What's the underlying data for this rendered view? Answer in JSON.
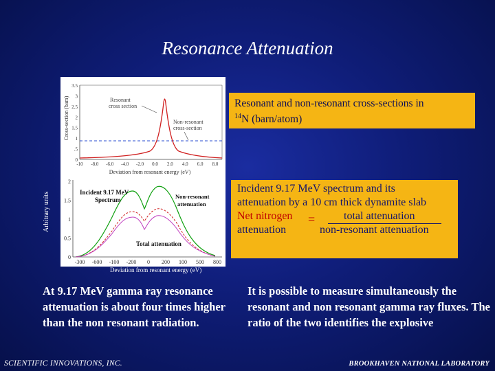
{
  "slide": {
    "title": "Resonance Attenuation",
    "footer_left": "SCIENTIFIC INNOVATIONS, INC.",
    "footer_right": "BROOKHAVEN NATIONAL LABORATORY"
  },
  "top_plot": {
    "y_axis_label": "Cross-section (bam)",
    "x_axis_label": "Deviation from resonant energy (eV)",
    "annotation_resonant": [
      "Resonant",
      "cross section"
    ],
    "annotation_nonresonant": [
      "Non-resonant",
      "cross-section"
    ],
    "y_ticks": [
      "3.5",
      "3",
      "2.5",
      "2",
      "1.5",
      "1",
      ".5",
      "0"
    ],
    "x_ticks": [
      "-10",
      "-8.0",
      "-6.0",
      "-4.0",
      "-2.0",
      "0.0",
      "2.0",
      "4.0",
      "6.0",
      "8.0"
    ]
  },
  "bottom_plot": {
    "y_axis_label": "Arbitrary units",
    "x_axis_label": "Deviation from resonant energy (eV)",
    "label_incident": [
      "Incident 9.17 MeV",
      "Spectrum"
    ],
    "label_nonresonant": [
      "Non-resonant",
      "attenuation"
    ],
    "label_total": "Total attenuation",
    "y_ticks": [
      "2",
      "1.5",
      "1",
      "0.5",
      "0"
    ],
    "x_ticks": [
      "-300",
      "-600",
      "-100",
      "-200",
      "0",
      "200",
      "100",
      "500",
      "800"
    ]
  },
  "box_top": {
    "line1": "Resonant and non-resonant cross-sections in",
    "isotope_mass": "14",
    "line2_rest": "N  (barn/atom)"
  },
  "box_right": {
    "line1": "Incident 9.17 MeV spectrum and its",
    "line2": "attenuation by a 10 cm thick dynamite slab",
    "lhs1": "Net nitrogen",
    "eq": "=",
    "numerator": "total attenuation",
    "lhs2": "attenuation",
    "denominator": "non-resonant attenuation"
  },
  "text_left": "At 9.17 MeV gamma ray resonance attenuation is about four times higher than the non resonant radiation.",
  "text_right": "It is possible to measure simultaneously the resonant and non resonant gamma ray fluxes. The ratio of the two identifies the explosive",
  "colors": {
    "background": "#0f1d78",
    "box": "#f5b514",
    "resonant_curve": "#d02020",
    "nonresonant_curve": "#2a4cd0",
    "incident_curve": "#10a010",
    "total_curve": "#c040c0"
  }
}
